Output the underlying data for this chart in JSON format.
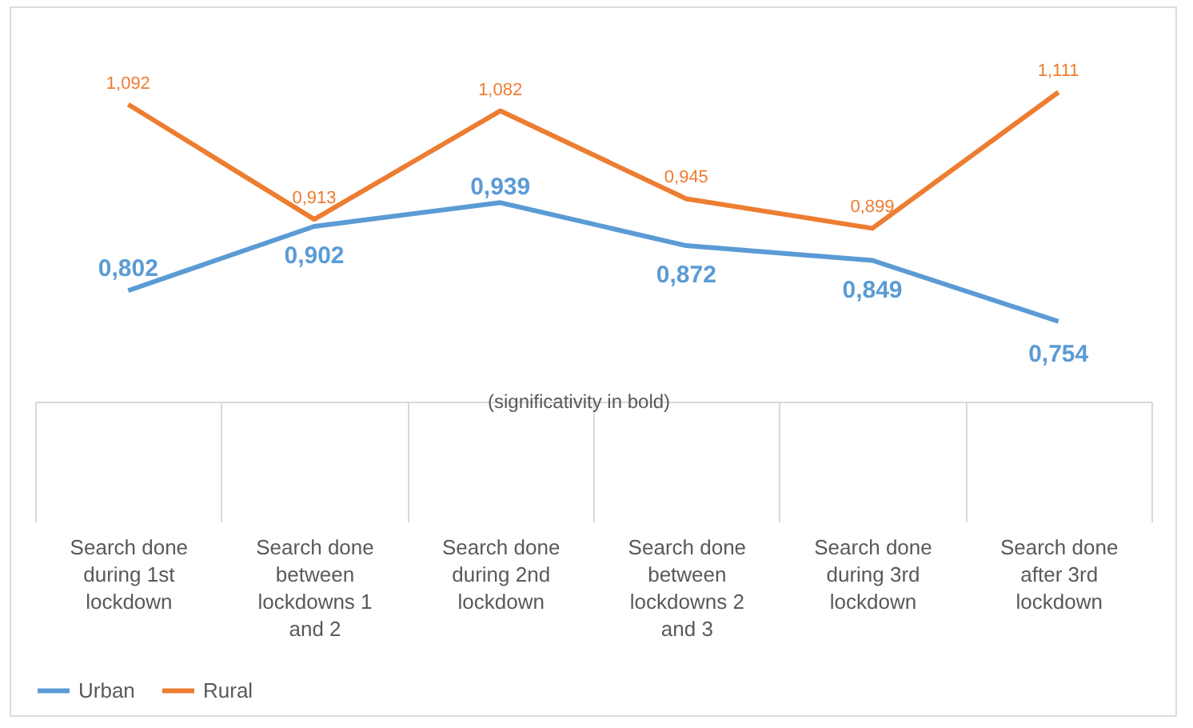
{
  "chart_data": {
    "type": "line",
    "categories": [
      "Search done during 1st lockdown",
      "Search done between lockdowns 1 and 2",
      "Search done during 2nd lockdown",
      "Search done between lockdowns 2 and 3",
      "Search done during 3rd lockdown",
      "Search done after 3rd lockdown"
    ],
    "series": [
      {
        "name": "Urban",
        "color": "#5b9bd5",
        "values": [
          0.802,
          0.902,
          0.939,
          0.872,
          0.849,
          0.754
        ],
        "value_labels": [
          "0,802",
          "0,902",
          "0,939",
          "0,872",
          "0,849",
          "0,754"
        ]
      },
      {
        "name": "Rural",
        "color": "#ed7d31",
        "values": [
          1.092,
          0.913,
          1.082,
          0.945,
          0.899,
          1.111
        ],
        "value_labels": [
          "1,092",
          "0,913",
          "1,082",
          "0,945",
          "0,899",
          "1,111"
        ]
      }
    ],
    "annotations": [
      "(significativity in bold)"
    ],
    "legend": "bottom",
    "grid": false,
    "marker": "none",
    "line_style": "solid"
  }
}
